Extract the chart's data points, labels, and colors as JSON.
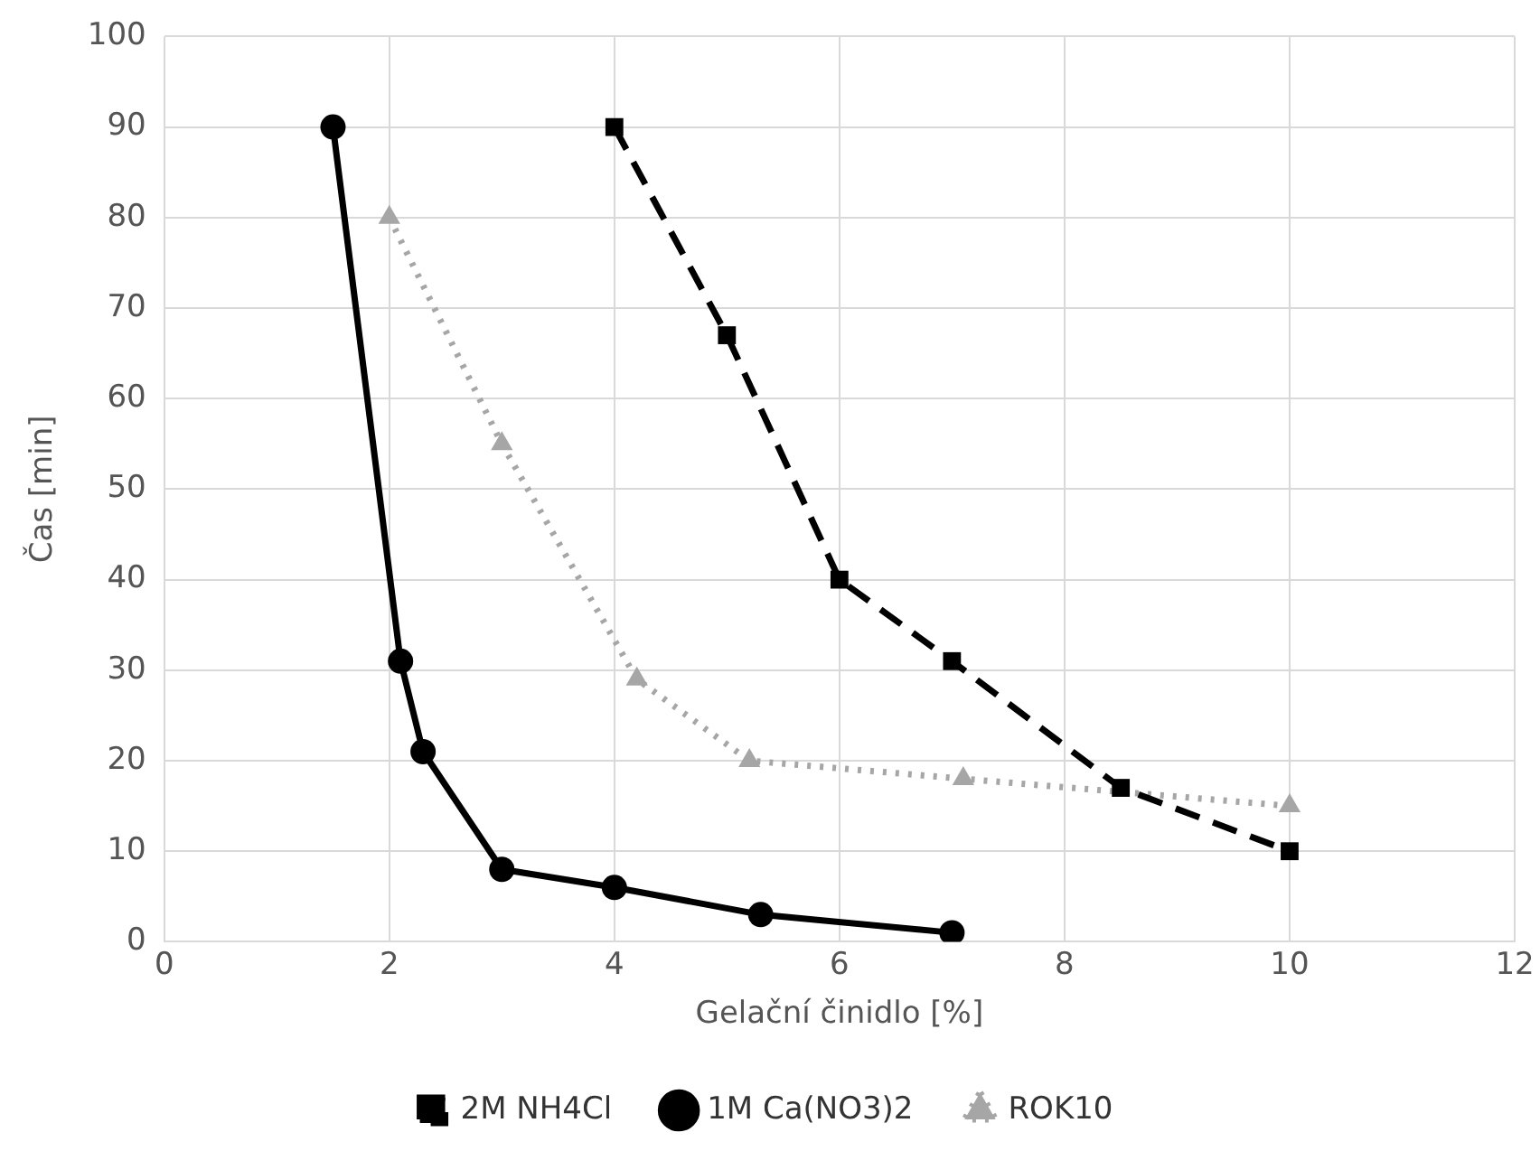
{
  "chart_data": {
    "type": "line",
    "xlabel": "Gelační činidlo [%]",
    "ylabel": "Čas [min]",
    "xlim": [
      0,
      12
    ],
    "xticks": [
      0,
      2,
      4,
      6,
      8,
      10,
      12
    ],
    "ylim": [
      0,
      100
    ],
    "yticks": [
      0,
      10,
      20,
      30,
      40,
      50,
      60,
      70,
      80,
      90,
      100
    ],
    "grid": true,
    "legend": "bottom",
    "series": [
      {
        "name": "2M NH4Cl",
        "color": "#000000",
        "marker": "square",
        "line_style": "dashed",
        "x": [
          4,
          5,
          6,
          7,
          8.5,
          10
        ],
        "values": [
          90,
          67,
          40,
          31,
          17,
          10
        ]
      },
      {
        "name": "1M Ca(NO3)2",
        "color": "#000000",
        "marker": "circle",
        "line_style": "solid",
        "x": [
          1.5,
          2.1,
          2.3,
          3,
          4,
          5.3,
          7
        ],
        "values": [
          90,
          31,
          21,
          8,
          6,
          3,
          1
        ]
      },
      {
        "name": "ROK10",
        "color": "#a6a6a6",
        "marker": "triangle",
        "line_style": "dotted",
        "x": [
          2,
          3,
          4.2,
          5.2,
          7.1,
          10
        ],
        "values": [
          80,
          55,
          29,
          20,
          18,
          15
        ]
      }
    ]
  }
}
